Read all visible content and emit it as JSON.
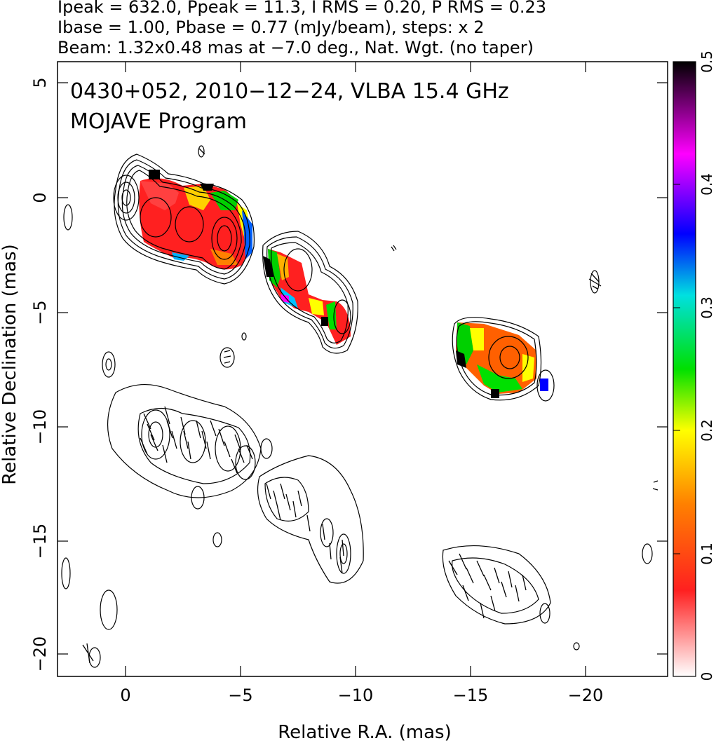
{
  "header": {
    "line1": "Ipeak = 632.0, Ppeak = 11.3, I RMS = 0.20, P RMS = 0.23",
    "line2": "Ibase = 1.00, Pbase = 0.77 (mJy/beam), steps: x 2",
    "line3": "Beam: 1.32x0.48 mas at −7.0 deg., Nat. Wgt. (no taper)"
  },
  "plot": {
    "title_line1": "0430+052, 2010−12−24, VLBA 15.4 GHz",
    "title_line2": "MOJAVE Program",
    "xlabel": "Relative R.A. (mas)",
    "ylabel": "Relative Declination (mas)",
    "x_ticks": [
      "0",
      "−5",
      "−10",
      "−15",
      "−20"
    ],
    "y_ticks": [
      "5",
      "0",
      "−5",
      "−10",
      "−15",
      "−20"
    ]
  },
  "colorbar": {
    "ticks": [
      "0.5",
      "0.4",
      "0.3",
      "0.2",
      "0.1",
      "0"
    ],
    "colors": [
      "#ffffff",
      "#ff2020",
      "#ff8000",
      "#ffff00",
      "#00e000",
      "#00e0e0",
      "#0000ff",
      "#ff00ff",
      "#000000"
    ]
  }
}
